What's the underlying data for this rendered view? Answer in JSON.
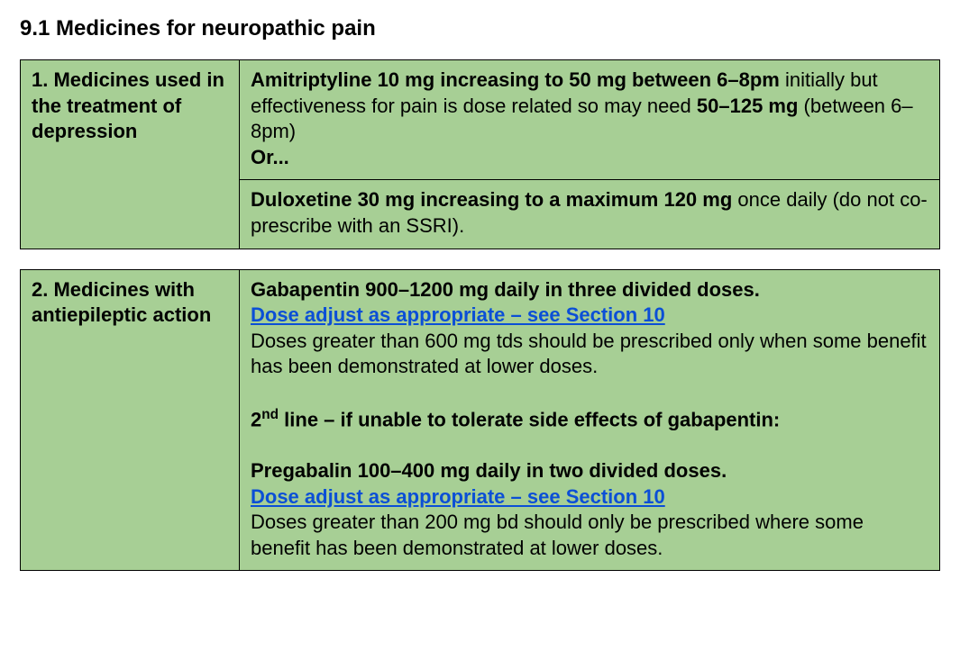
{
  "heading": "9.1 Medicines for neuropathic pain",
  "colors": {
    "tableBackground": "#a7cf95",
    "border": "#000000",
    "link": "#0b4fd6",
    "pageBackground": "#ffffff"
  },
  "typography": {
    "fontFamily": "Arial, Helvetica, sans-serif",
    "headingFontSizePt": 18,
    "bodyFontSizePt": 16,
    "lineHeight": 1.3
  },
  "tables": [
    {
      "label": "1. Medicines used in the treatment of depression",
      "rows": [
        {
          "segments": [
            {
              "text": "Amitriptyline 10 mg increasing to 50 mg between 6–8pm",
              "bold": true
            },
            {
              "text": " initially but effectiveness for pain is dose related so may need "
            },
            {
              "text": "50–125 mg",
              "bold": true
            },
            {
              "text": " (between 6–8pm)"
            },
            {
              "br": true
            },
            {
              "text": "Or...",
              "bold": true
            }
          ]
        },
        {
          "segments": [
            {
              "text": "Duloxetine 30 mg increasing to a maximum 120 mg",
              "bold": true
            },
            {
              "text": " once daily (do not co-prescribe with an SSRI)."
            }
          ]
        }
      ]
    },
    {
      "label": "2. Medicines with antiepileptic action",
      "rows": [
        {
          "segments": [
            {
              "text": "Gabapentin 900–1200 mg daily in three divided doses.",
              "bold": true
            },
            {
              "br": true
            },
            {
              "text": "Dose adjust as appropriate – see Section 10",
              "link": true
            },
            {
              "br": true
            },
            {
              "text": "Doses greater than 600 mg tds should be prescribed only when some benefit has been demonstrated at lower doses."
            },
            {
              "br": true
            },
            {
              "br": true
            },
            {
              "text": "2",
              "bold": true
            },
            {
              "text": "nd",
              "bold": true,
              "sup": true
            },
            {
              "text": " line – if unable to tolerate side effects of gabapentin:",
              "bold": true
            },
            {
              "br": true
            },
            {
              "br": true
            },
            {
              "text": "Pregabalin 100–400 mg daily in two divided doses.",
              "bold": true
            },
            {
              "br": true
            },
            {
              "text": "Dose adjust as appropriate – see Section 10",
              "link": true
            },
            {
              "br": true
            },
            {
              "text": "Doses greater than 200 mg bd should only be prescribed where some benefit has been demonstrated at lower doses."
            }
          ]
        }
      ]
    }
  ]
}
